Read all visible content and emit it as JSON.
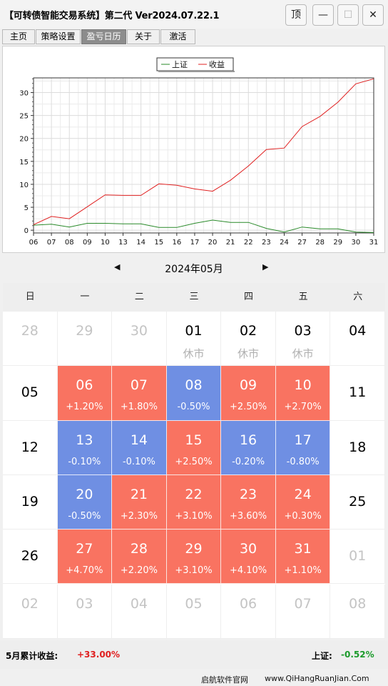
{
  "window": {
    "title": "【可转债智能交易系统】第二代 Ver2024.07.22.1",
    "buttons": {
      "top": "顶",
      "minimize": "—",
      "maximize": "☐",
      "close": "✕"
    }
  },
  "tabs": [
    {
      "label": "主页",
      "active": false
    },
    {
      "label": "策略设置",
      "active": false
    },
    {
      "label": "盈亏日历",
      "active": true
    },
    {
      "label": "关于",
      "active": false
    },
    {
      "label": "激活",
      "active": false
    }
  ],
  "chart_data": {
    "type": "line",
    "categories": [
      "06",
      "07",
      "08",
      "09",
      "10",
      "13",
      "14",
      "15",
      "16",
      "17",
      "20",
      "21",
      "22",
      "23",
      "24",
      "27",
      "28",
      "29",
      "30",
      "31"
    ],
    "series": [
      {
        "name": "上证",
        "color": "#2a8a2a",
        "values": [
          1.1,
          1.3,
          0.7,
          1.5,
          1.5,
          1.4,
          1.4,
          0.6,
          0.6,
          1.5,
          2.2,
          1.7,
          1.7,
          0.4,
          -0.4,
          0.7,
          0.3,
          0.3,
          -0.4,
          -0.5
        ]
      },
      {
        "name": "收益",
        "color": "#e02020",
        "values": [
          1.2,
          3.0,
          2.5,
          5.1,
          7.7,
          7.6,
          7.6,
          10.1,
          9.8,
          9.0,
          8.5,
          10.9,
          14.0,
          17.6,
          17.9,
          22.6,
          24.8,
          27.9,
          31.9,
          33.0
        ]
      }
    ],
    "ylim": [
      -0.6,
      33.2
    ],
    "yticks": [
      0,
      5,
      10,
      15,
      20,
      25,
      30
    ],
    "grid": true,
    "legend": "top-center"
  },
  "calendar": {
    "prev_icon": "◀",
    "next_icon": "▶",
    "month_title": "2024年05月",
    "weekdays": [
      "日",
      "一",
      "二",
      "三",
      "四",
      "五",
      "六"
    ],
    "rows": [
      [
        {
          "day": "28",
          "type": "other"
        },
        {
          "day": "29",
          "type": "other"
        },
        {
          "day": "30",
          "type": "other"
        },
        {
          "day": "01",
          "type": "holiday",
          "sub": "休市"
        },
        {
          "day": "02",
          "type": "holiday",
          "sub": "休市"
        },
        {
          "day": "03",
          "type": "holiday",
          "sub": "休市"
        },
        {
          "day": "04",
          "type": "weekend"
        }
      ],
      [
        {
          "day": "05",
          "type": "weekend"
        },
        {
          "day": "06",
          "type": "up",
          "sub": "+1.20%"
        },
        {
          "day": "07",
          "type": "up",
          "sub": "+1.80%"
        },
        {
          "day": "08",
          "type": "down",
          "sub": "-0.50%"
        },
        {
          "day": "09",
          "type": "up",
          "sub": "+2.50%"
        },
        {
          "day": "10",
          "type": "up",
          "sub": "+2.70%"
        },
        {
          "day": "11",
          "type": "weekend"
        }
      ],
      [
        {
          "day": "12",
          "type": "weekend"
        },
        {
          "day": "13",
          "type": "down",
          "sub": "-0.10%"
        },
        {
          "day": "14",
          "type": "down",
          "sub": "-0.10%"
        },
        {
          "day": "15",
          "type": "up",
          "sub": "+2.50%"
        },
        {
          "day": "16",
          "type": "down",
          "sub": "-0.20%"
        },
        {
          "day": "17",
          "type": "down",
          "sub": "-0.80%"
        },
        {
          "day": "18",
          "type": "weekend"
        }
      ],
      [
        {
          "day": "19",
          "type": "weekend"
        },
        {
          "day": "20",
          "type": "down",
          "sub": "-0.50%"
        },
        {
          "day": "21",
          "type": "up",
          "sub": "+2.30%"
        },
        {
          "day": "22",
          "type": "up",
          "sub": "+3.10%"
        },
        {
          "day": "23",
          "type": "up",
          "sub": "+3.60%"
        },
        {
          "day": "24",
          "type": "up",
          "sub": "+0.30%"
        },
        {
          "day": "25",
          "type": "weekend"
        }
      ],
      [
        {
          "day": "26",
          "type": "weekend"
        },
        {
          "day": "27",
          "type": "up",
          "sub": "+4.70%"
        },
        {
          "day": "28",
          "type": "up",
          "sub": "+2.20%"
        },
        {
          "day": "29",
          "type": "up",
          "sub": "+3.10%"
        },
        {
          "day": "30",
          "type": "up",
          "sub": "+4.10%"
        },
        {
          "day": "31",
          "type": "up",
          "sub": "+1.10%"
        },
        {
          "day": "01",
          "type": "other"
        }
      ],
      [
        {
          "day": "02",
          "type": "other"
        },
        {
          "day": "03",
          "type": "other"
        },
        {
          "day": "04",
          "type": "other"
        },
        {
          "day": "05",
          "type": "other"
        },
        {
          "day": "06",
          "type": "other"
        },
        {
          "day": "07",
          "type": "other"
        },
        {
          "day": "08",
          "type": "other"
        }
      ]
    ],
    "colors": {
      "up": "#f97361",
      "down": "#6f8fe3",
      "other": "#c4c4c4"
    }
  },
  "summary": {
    "month_label": "5月累计收益:",
    "month_value": "+33.00%",
    "index_label": "上证:",
    "index_value": "-0.52%",
    "value_up_color": "#e02020",
    "value_down_color": "#1a9a2a"
  },
  "status": {
    "site_name": "启航软件官网",
    "site_url": "www.QiHangRuanJian.Com"
  }
}
